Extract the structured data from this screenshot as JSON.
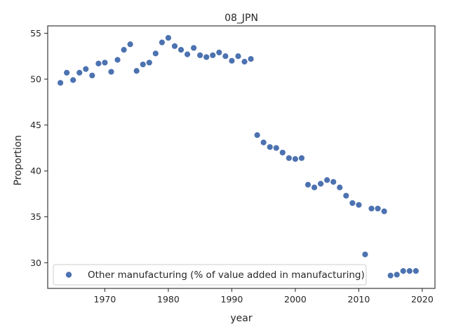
{
  "chart_data": {
    "type": "scatter",
    "title": "08_JPN",
    "xlabel": "year",
    "ylabel": "Proportion",
    "xlim": [
      1961,
      2022
    ],
    "ylim": [
      27.2,
      55.8
    ],
    "xticks": [
      1970,
      1980,
      1990,
      2000,
      2010,
      2020
    ],
    "yticks": [
      30,
      35,
      40,
      45,
      50,
      55
    ],
    "grid": false,
    "legend_position": "lower-left",
    "series": [
      {
        "name": "Other manufacturing (% of value added in manufacturing)",
        "color": "#4c72b0",
        "points": [
          [
            1963,
            49.6
          ],
          [
            1964,
            50.7
          ],
          [
            1965,
            49.9
          ],
          [
            1966,
            50.7
          ],
          [
            1967,
            51.1
          ],
          [
            1968,
            50.4
          ],
          [
            1969,
            51.7
          ],
          [
            1970,
            51.8
          ],
          [
            1971,
            50.8
          ],
          [
            1972,
            52.1
          ],
          [
            1973,
            53.2
          ],
          [
            1974,
            53.8
          ],
          [
            1975,
            50.9
          ],
          [
            1976,
            51.6
          ],
          [
            1977,
            51.8
          ],
          [
            1978,
            52.8
          ],
          [
            1979,
            54.0
          ],
          [
            1980,
            54.5
          ],
          [
            1981,
            53.6
          ],
          [
            1982,
            53.2
          ],
          [
            1983,
            52.7
          ],
          [
            1984,
            53.4
          ],
          [
            1985,
            52.6
          ],
          [
            1986,
            52.4
          ],
          [
            1987,
            52.6
          ],
          [
            1988,
            52.9
          ],
          [
            1989,
            52.5
          ],
          [
            1990,
            52.0
          ],
          [
            1991,
            52.5
          ],
          [
            1992,
            51.9
          ],
          [
            1993,
            52.2
          ],
          [
            1994,
            43.9
          ],
          [
            1995,
            43.1
          ],
          [
            1996,
            42.6
          ],
          [
            1997,
            42.5
          ],
          [
            1998,
            42.0
          ],
          [
            1999,
            41.4
          ],
          [
            2000,
            41.3
          ],
          [
            2001,
            41.4
          ],
          [
            2002,
            38.5
          ],
          [
            2003,
            38.2
          ],
          [
            2004,
            38.6
          ],
          [
            2005,
            39.0
          ],
          [
            2006,
            38.8
          ],
          [
            2007,
            38.2
          ],
          [
            2008,
            37.3
          ],
          [
            2009,
            36.5
          ],
          [
            2010,
            36.3
          ],
          [
            2011,
            30.9
          ],
          [
            2012,
            35.9
          ],
          [
            2013,
            35.9
          ],
          [
            2014,
            35.6
          ],
          [
            2015,
            28.6
          ],
          [
            2016,
            28.7
          ],
          [
            2017,
            29.1
          ],
          [
            2018,
            29.1
          ],
          [
            2019,
            29.1
          ]
        ]
      }
    ]
  }
}
